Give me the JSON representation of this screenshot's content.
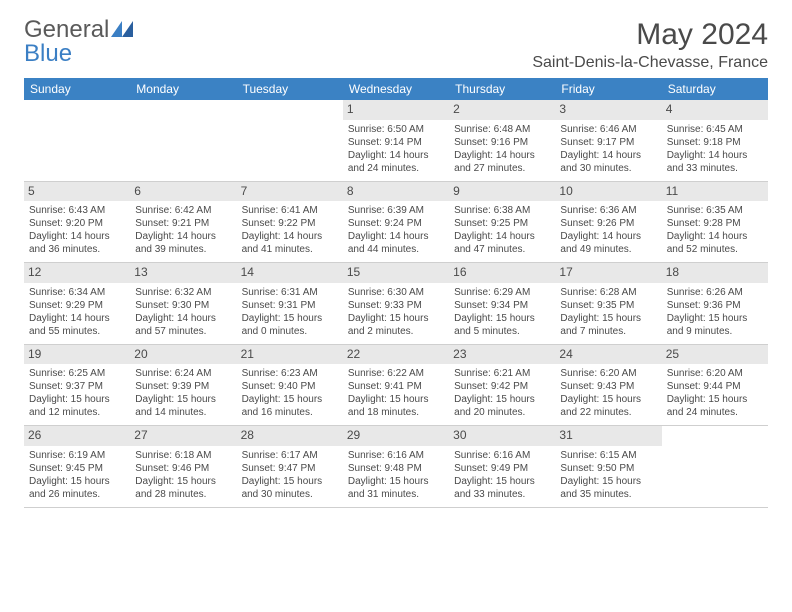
{
  "logo": {
    "text1": "General",
    "text2": "Blue"
  },
  "title": "May 2024",
  "location": "Saint-Denis-la-Chevasse, France",
  "colors": {
    "header_bg": "#3b82c4",
    "header_text": "#ffffff",
    "daynum_bg": "#e8e8e8",
    "text": "#4a4a4a",
    "logo_blue": "#3b7fc4",
    "border": "#cfcfcf",
    "background": "#ffffff"
  },
  "day_names": [
    "Sunday",
    "Monday",
    "Tuesday",
    "Wednesday",
    "Thursday",
    "Friday",
    "Saturday"
  ],
  "weeks": [
    [
      {
        "n": "",
        "sr": "",
        "ss": "",
        "dl": ""
      },
      {
        "n": "",
        "sr": "",
        "ss": "",
        "dl": ""
      },
      {
        "n": "",
        "sr": "",
        "ss": "",
        "dl": ""
      },
      {
        "n": "1",
        "sr": "Sunrise: 6:50 AM",
        "ss": "Sunset: 9:14 PM",
        "dl": "Daylight: 14 hours and 24 minutes."
      },
      {
        "n": "2",
        "sr": "Sunrise: 6:48 AM",
        "ss": "Sunset: 9:16 PM",
        "dl": "Daylight: 14 hours and 27 minutes."
      },
      {
        "n": "3",
        "sr": "Sunrise: 6:46 AM",
        "ss": "Sunset: 9:17 PM",
        "dl": "Daylight: 14 hours and 30 minutes."
      },
      {
        "n": "4",
        "sr": "Sunrise: 6:45 AM",
        "ss": "Sunset: 9:18 PM",
        "dl": "Daylight: 14 hours and 33 minutes."
      }
    ],
    [
      {
        "n": "5",
        "sr": "Sunrise: 6:43 AM",
        "ss": "Sunset: 9:20 PM",
        "dl": "Daylight: 14 hours and 36 minutes."
      },
      {
        "n": "6",
        "sr": "Sunrise: 6:42 AM",
        "ss": "Sunset: 9:21 PM",
        "dl": "Daylight: 14 hours and 39 minutes."
      },
      {
        "n": "7",
        "sr": "Sunrise: 6:41 AM",
        "ss": "Sunset: 9:22 PM",
        "dl": "Daylight: 14 hours and 41 minutes."
      },
      {
        "n": "8",
        "sr": "Sunrise: 6:39 AM",
        "ss": "Sunset: 9:24 PM",
        "dl": "Daylight: 14 hours and 44 minutes."
      },
      {
        "n": "9",
        "sr": "Sunrise: 6:38 AM",
        "ss": "Sunset: 9:25 PM",
        "dl": "Daylight: 14 hours and 47 minutes."
      },
      {
        "n": "10",
        "sr": "Sunrise: 6:36 AM",
        "ss": "Sunset: 9:26 PM",
        "dl": "Daylight: 14 hours and 49 minutes."
      },
      {
        "n": "11",
        "sr": "Sunrise: 6:35 AM",
        "ss": "Sunset: 9:28 PM",
        "dl": "Daylight: 14 hours and 52 minutes."
      }
    ],
    [
      {
        "n": "12",
        "sr": "Sunrise: 6:34 AM",
        "ss": "Sunset: 9:29 PM",
        "dl": "Daylight: 14 hours and 55 minutes."
      },
      {
        "n": "13",
        "sr": "Sunrise: 6:32 AM",
        "ss": "Sunset: 9:30 PM",
        "dl": "Daylight: 14 hours and 57 minutes."
      },
      {
        "n": "14",
        "sr": "Sunrise: 6:31 AM",
        "ss": "Sunset: 9:31 PM",
        "dl": "Daylight: 15 hours and 0 minutes."
      },
      {
        "n": "15",
        "sr": "Sunrise: 6:30 AM",
        "ss": "Sunset: 9:33 PM",
        "dl": "Daylight: 15 hours and 2 minutes."
      },
      {
        "n": "16",
        "sr": "Sunrise: 6:29 AM",
        "ss": "Sunset: 9:34 PM",
        "dl": "Daylight: 15 hours and 5 minutes."
      },
      {
        "n": "17",
        "sr": "Sunrise: 6:28 AM",
        "ss": "Sunset: 9:35 PM",
        "dl": "Daylight: 15 hours and 7 minutes."
      },
      {
        "n": "18",
        "sr": "Sunrise: 6:26 AM",
        "ss": "Sunset: 9:36 PM",
        "dl": "Daylight: 15 hours and 9 minutes."
      }
    ],
    [
      {
        "n": "19",
        "sr": "Sunrise: 6:25 AM",
        "ss": "Sunset: 9:37 PM",
        "dl": "Daylight: 15 hours and 12 minutes."
      },
      {
        "n": "20",
        "sr": "Sunrise: 6:24 AM",
        "ss": "Sunset: 9:39 PM",
        "dl": "Daylight: 15 hours and 14 minutes."
      },
      {
        "n": "21",
        "sr": "Sunrise: 6:23 AM",
        "ss": "Sunset: 9:40 PM",
        "dl": "Daylight: 15 hours and 16 minutes."
      },
      {
        "n": "22",
        "sr": "Sunrise: 6:22 AM",
        "ss": "Sunset: 9:41 PM",
        "dl": "Daylight: 15 hours and 18 minutes."
      },
      {
        "n": "23",
        "sr": "Sunrise: 6:21 AM",
        "ss": "Sunset: 9:42 PM",
        "dl": "Daylight: 15 hours and 20 minutes."
      },
      {
        "n": "24",
        "sr": "Sunrise: 6:20 AM",
        "ss": "Sunset: 9:43 PM",
        "dl": "Daylight: 15 hours and 22 minutes."
      },
      {
        "n": "25",
        "sr": "Sunrise: 6:20 AM",
        "ss": "Sunset: 9:44 PM",
        "dl": "Daylight: 15 hours and 24 minutes."
      }
    ],
    [
      {
        "n": "26",
        "sr": "Sunrise: 6:19 AM",
        "ss": "Sunset: 9:45 PM",
        "dl": "Daylight: 15 hours and 26 minutes."
      },
      {
        "n": "27",
        "sr": "Sunrise: 6:18 AM",
        "ss": "Sunset: 9:46 PM",
        "dl": "Daylight: 15 hours and 28 minutes."
      },
      {
        "n": "28",
        "sr": "Sunrise: 6:17 AM",
        "ss": "Sunset: 9:47 PM",
        "dl": "Daylight: 15 hours and 30 minutes."
      },
      {
        "n": "29",
        "sr": "Sunrise: 6:16 AM",
        "ss": "Sunset: 9:48 PM",
        "dl": "Daylight: 15 hours and 31 minutes."
      },
      {
        "n": "30",
        "sr": "Sunrise: 6:16 AM",
        "ss": "Sunset: 9:49 PM",
        "dl": "Daylight: 15 hours and 33 minutes."
      },
      {
        "n": "31",
        "sr": "Sunrise: 6:15 AM",
        "ss": "Sunset: 9:50 PM",
        "dl": "Daylight: 15 hours and 35 minutes."
      },
      {
        "n": "",
        "sr": "",
        "ss": "",
        "dl": ""
      }
    ]
  ]
}
